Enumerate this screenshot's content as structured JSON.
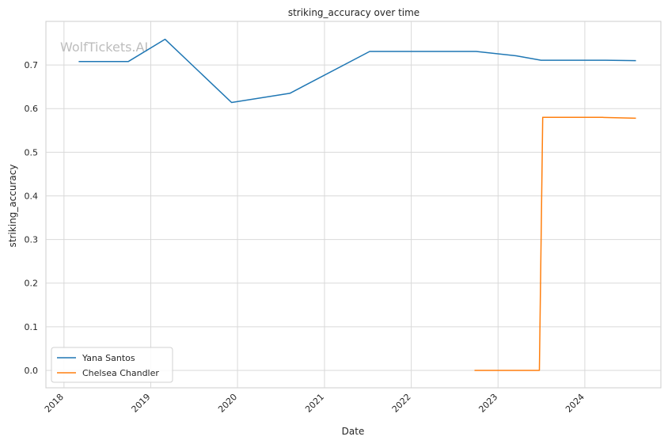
{
  "watermark": "WolfTickets.AI",
  "chart_data": {
    "type": "line",
    "title": "striking_accuracy over time",
    "xlabel": "Date",
    "ylabel": "striking_accuracy",
    "x_ticks": [
      "2018",
      "2019",
      "2020",
      "2021",
      "2022",
      "2023",
      "2024"
    ],
    "y_ticks": [
      "0.0",
      "0.1",
      "0.2",
      "0.3",
      "0.4",
      "0.5",
      "0.6",
      "0.7"
    ],
    "xlim": [
      "2017-10-17",
      "2024-11-16"
    ],
    "ylim": [
      -0.04,
      0.8
    ],
    "grid": true,
    "legend_position": "lower-left",
    "series": [
      {
        "name": "Yana Santos",
        "color": "#1f77b4",
        "points": [
          {
            "x": "2018-03-04",
            "y": 0.708
          },
          {
            "x": "2018-09-29",
            "y": 0.708
          },
          {
            "x": "2019-03-02",
            "y": 0.759
          },
          {
            "x": "2019-12-07",
            "y": 0.614
          },
          {
            "x": "2020-08-08",
            "y": 0.635
          },
          {
            "x": "2021-07-10",
            "y": 0.731
          },
          {
            "x": "2022-10-01",
            "y": 0.731
          },
          {
            "x": "2023-03-18",
            "y": 0.721
          },
          {
            "x": "2023-07-01",
            "y": 0.711
          },
          {
            "x": "2024-03-30",
            "y": 0.711
          },
          {
            "x": "2024-08-03",
            "y": 0.71
          }
        ]
      },
      {
        "name": "Chelsea Chandler",
        "color": "#ff7f0e",
        "points": [
          {
            "x": "2022-09-24",
            "y": 0.0
          },
          {
            "x": "2023-06-24",
            "y": 0.0
          },
          {
            "x": "2023-07-08",
            "y": 0.58
          },
          {
            "x": "2024-03-16",
            "y": 0.58
          },
          {
            "x": "2024-08-03",
            "y": 0.578
          }
        ]
      }
    ]
  }
}
